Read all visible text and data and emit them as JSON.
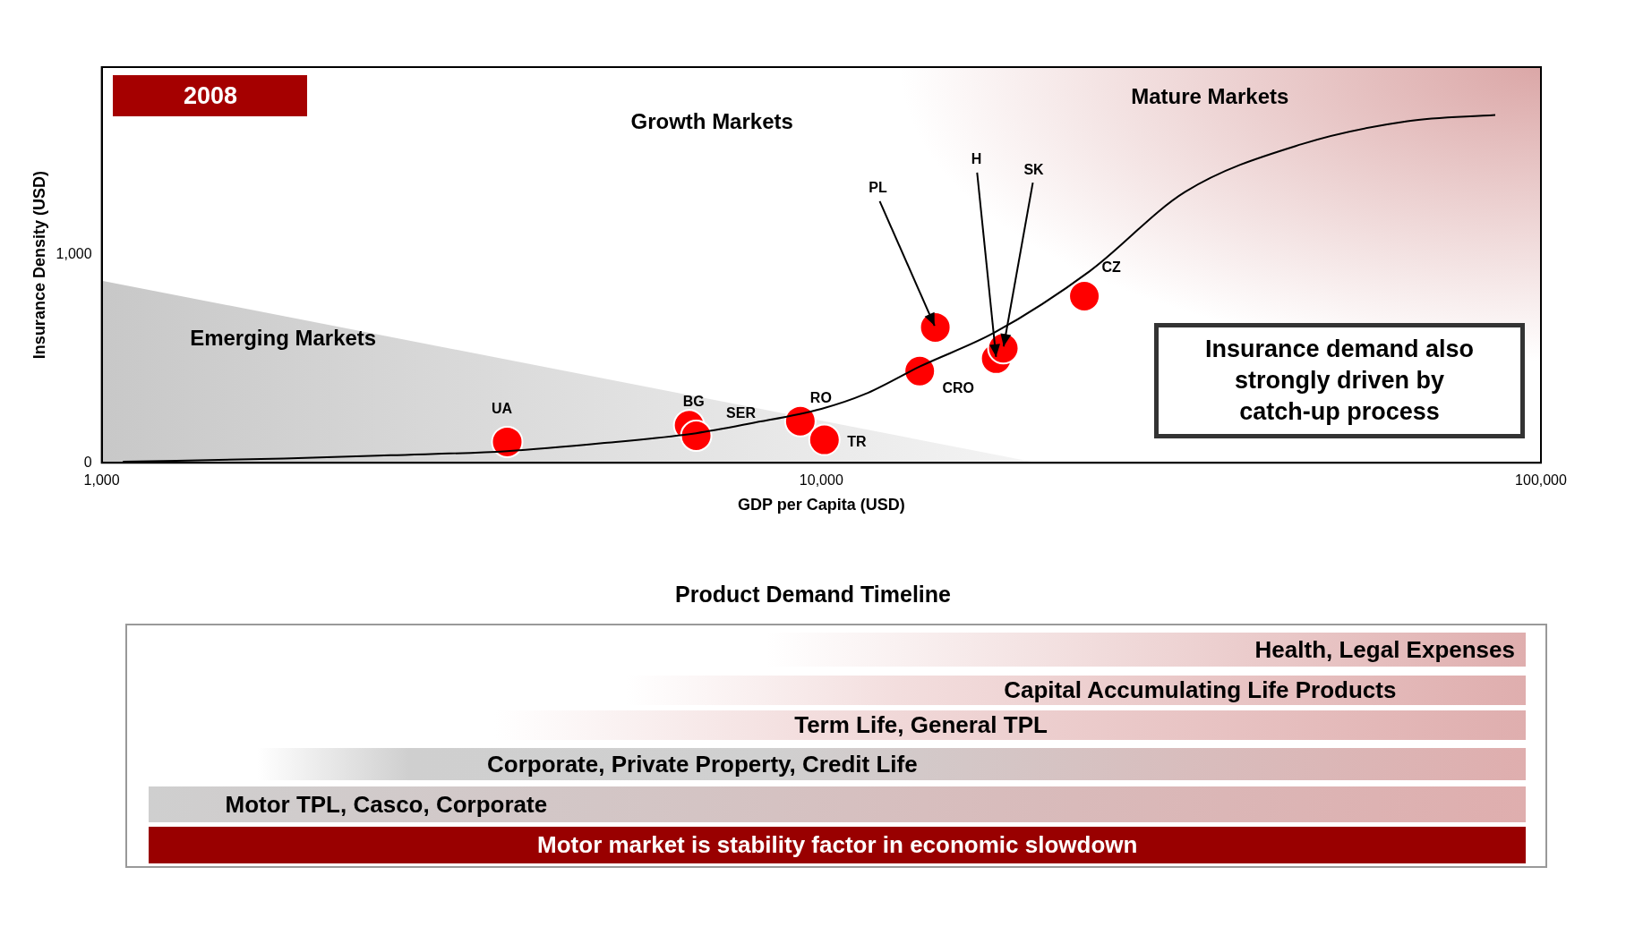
{
  "chart_data": [
    {
      "type": "scatter",
      "xlabel": "GDP per Capita (USD)",
      "ylabel": "Insurance Density (USD)",
      "log": "x",
      "xlim": [
        1000,
        100000
      ],
      "xticks": [
        {
          "value": 1000,
          "label": "1,000"
        },
        {
          "value": 10000,
          "label": "10,000"
        },
        {
          "value": 100000,
          "label": "100,000"
        }
      ],
      "ylim": [
        0,
        1900
      ],
      "yticks": [
        0,
        {
          "value": 1000,
          "label": "1,000"
        }
      ],
      "annotations": [
        "2008",
        "Growth Markets",
        "Mature Markets",
        "Emerging Markets",
        "Insurance demand also strongly driven by catch-up process",
        {
          "text": "UA",
          "x": 3660,
          "y": 100
        },
        {
          "text": "BG",
          "x": 6550,
          "y": 180
        },
        {
          "text": "SER",
          "x": 6700,
          "y": 130
        },
        {
          "text": "RO",
          "x": 9350,
          "y": 200
        },
        {
          "text": "TR",
          "x": 10100,
          "y": 110
        },
        {
          "text": "CRO",
          "x": 13700,
          "y": 440
        },
        {
          "text": "PL",
          "x": 14400,
          "y": 650
        },
        {
          "text": "H",
          "x": 17500,
          "y": 500
        },
        {
          "text": "SK",
          "x": 17900,
          "y": 550
        },
        {
          "text": "CZ",
          "x": 23200,
          "y": 800
        }
      ],
      "series": [
        {
          "type": "scatter",
          "color": "#ff0000",
          "marker": "circle",
          "x": [
            3660,
            6550,
            6700,
            9350,
            10100,
            13700,
            14400,
            17500,
            17900,
            23200
          ],
          "values": [
            100,
            180,
            130,
            200,
            110,
            440,
            650,
            500,
            550,
            800
          ]
        },
        {
          "type": "line",
          "color": "#000000",
          "marker": "none",
          "x": [
            1070,
            1790,
            2520,
            3660,
            5000,
            6700,
            8000,
            10000,
            11500,
            13700,
            17400,
            23600,
            32000,
            46500,
            65200,
            86400
          ],
          "values": [
            5,
            20,
            36,
            56,
            95,
            142,
            190,
            259,
            330,
            462,
            625,
            920,
            1300,
            1530,
            1640,
            1670
          ]
        }
      ]
    },
    {
      "type": "other",
      "title": "Product Demand Timeline",
      "annotations": [
        "Health, Legal Expenses",
        "Capital Accumulating Life Products",
        "Term Life, General TPL",
        "Corporate, Private Property, Credit Life",
        "Motor TPL, Casco, Corporate",
        "Motor market is stability factor in economic slowdown"
      ]
    }
  ]
}
